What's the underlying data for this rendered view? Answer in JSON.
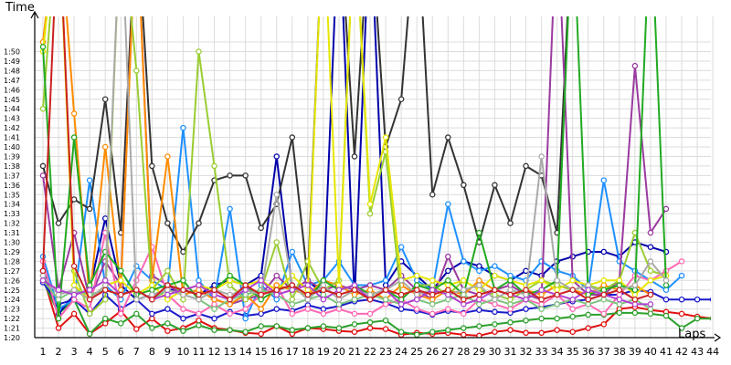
{
  "chart_data": {
    "type": "line",
    "title": "",
    "xlabel": "Laps",
    "ylabel": "Time",
    "xlim": [
      1,
      44
    ],
    "ylim_seconds": [
      80,
      111
    ],
    "y_ticks": [
      "1:20",
      "1:21",
      "1:22",
      "1:23",
      "1:24",
      "1:25",
      "1:26",
      "1:27",
      "1:28",
      "1:29",
      "1:30",
      "1:31",
      "1:32",
      "1:33",
      "1:34",
      "1:35",
      "1:36",
      "1:37",
      "1:38",
      "1:39",
      "1:40",
      "1:41",
      "1:42",
      "1:43",
      "1:44",
      "1:45",
      "1:46",
      "1:47",
      "1:48",
      "1:49",
      "1:50"
    ],
    "x_ticks": [
      "1",
      "2",
      "3",
      "4",
      "5",
      "6",
      "7",
      "8",
      "9",
      "10",
      "11",
      "12",
      "13",
      "14",
      "15",
      "16",
      "17",
      "18",
      "19",
      "20",
      "21",
      "22",
      "23",
      "24",
      "25",
      "26",
      "27",
      "28",
      "29",
      "30",
      "31",
      "32",
      "33",
      "34",
      "35",
      "36",
      "37",
      "38",
      "39",
      "40",
      "41",
      "42",
      "43",
      "44"
    ],
    "grid": true,
    "legend": "none",
    "series": [
      {
        "color": "#e01010",
        "values": [
          86.5,
          81.0,
          82.5,
          80.4,
          81.5,
          82.8,
          80.9,
          82.0,
          80.7,
          81.0,
          81.8,
          81.0,
          80.8,
          80.5,
          80.4,
          81.2,
          80.4,
          81.0,
          80.9,
          80.7,
          80.6,
          81.0,
          80.9,
          80.3,
          80.5,
          80.4,
          80.5,
          80.3,
          80.2,
          80.6,
          80.8,
          80.5,
          80.5,
          80.8,
          80.6,
          81.0,
          81.4,
          83.0,
          83.2,
          82.9,
          82.7,
          82.5,
          82.2,
          82.0
        ]
      },
      {
        "color": "#2ca02c",
        "values": [
          86.0,
          82.5,
          84.0,
          80.4,
          82.0,
          81.5,
          82.5,
          81.0,
          81.5,
          80.7,
          81.3,
          80.8,
          80.8,
          80.6,
          81.2,
          81.2,
          80.8,
          81.0,
          81.2,
          81.0,
          81.4,
          81.6,
          81.8,
          80.6,
          80.3,
          80.6,
          80.8,
          81.0,
          81.2,
          81.4,
          81.6,
          81.8,
          82.0,
          82.0,
          82.2,
          82.4,
          82.4,
          82.6,
          82.6,
          82.5,
          82.3,
          81.0,
          82.0,
          82.0
        ]
      },
      {
        "color": "#1b1bcc",
        "values": [
          85.8,
          83.5,
          84.0,
          82.5,
          84.5,
          83.0,
          84.0,
          82.5,
          83.0,
          82.0,
          82.5,
          82.0,
          82.7,
          82.3,
          82.5,
          83.0,
          82.8,
          83.4,
          83.0,
          83.3,
          83.8,
          84.0,
          83.6,
          83.0,
          82.8,
          82.4,
          82.8,
          82.6,
          82.9,
          82.7,
          82.6,
          83.0,
          83.2,
          83.5,
          83.8,
          84.0,
          84.5,
          84.5,
          85.0,
          84.8,
          84.0,
          84.0,
          84.0,
          84.0
        ]
      },
      {
        "color": "#0000aa",
        "values": [
          87.0,
          82.5,
          84.5,
          85.0,
          92.5,
          85.5,
          84.0,
          84.5,
          85.0,
          85.0,
          84.5,
          85.5,
          86.0,
          85.5,
          86.5,
          99.0,
          85.0,
          86.0,
          84.5,
          125,
          84.0,
          125,
          85.5,
          88.0,
          86.5,
          85.0,
          87.0,
          88.0,
          87.5,
          86.5,
          86.0,
          87.0,
          86.5,
          88.0,
          88.5,
          89.0,
          89.0,
          88.5,
          90.0,
          89.5,
          89.0,
          null,
          null,
          null
        ]
      },
      {
        "color": "#1e90ff",
        "values": [
          88.5,
          83.0,
          84.0,
          96.5,
          85.5,
          84.0,
          87.5,
          86.0,
          85.0,
          102.0,
          86.0,
          84.0,
          93.5,
          82.0,
          85.5,
          84.0,
          89.0,
          85.5,
          86.0,
          88.0,
          85.5,
          85.5,
          86.0,
          89.5,
          86.0,
          85.0,
          94.0,
          88.0,
          87.0,
          87.5,
          86.5,
          86.0,
          88.0,
          87.0,
          86.5,
          85.0,
          96.5,
          88.0,
          87.0,
          86.0,
          85.0,
          86.5,
          null,
          null
        ]
      },
      {
        "color": "#333333",
        "values": [
          98.0,
          92.0,
          94.5,
          93.5,
          105.0,
          91.0,
          125,
          98.0,
          92.0,
          89.0,
          92.0,
          96.5,
          97.0,
          97.0,
          91.5,
          94.0,
          101.0,
          86.0,
          125,
          125,
          99.0,
          125,
          100.0,
          105.0,
          125,
          95.0,
          101.0,
          96.0,
          90.0,
          96.0,
          92.0,
          98.0,
          97.0,
          91.0,
          125,
          125,
          125,
          125,
          125,
          125,
          125,
          null,
          null,
          null
        ]
      },
      {
        "color": "#9a3aa0",
        "values": [
          97.0,
          85.0,
          91.0,
          84.0,
          88.0,
          85.5,
          125,
          86.5,
          85.5,
          84.5,
          85.0,
          84.0,
          83.5,
          84.0,
          84.5,
          86.5,
          85.0,
          86.0,
          85.0,
          85.5,
          85.0,
          85.5,
          85.0,
          86.5,
          85.0,
          84.0,
          88.5,
          85.0,
          84.5,
          85.0,
          85.5,
          84.5,
          84.0,
          125,
          86.0,
          84.5,
          84.5,
          86.0,
          108.5,
          91.0,
          93.5,
          null,
          null,
          null
        ]
      },
      {
        "color": "#ff69b4",
        "values": [
          88.0,
          82.0,
          84.0,
          83.0,
          91.0,
          82.5,
          86.0,
          89.5,
          84.5,
          83.0,
          82.5,
          83.5,
          82.5,
          83.0,
          84.5,
          85.5,
          82.5,
          83.0,
          82.5,
          83.0,
          82.5,
          82.5,
          83.5,
          84.0,
          83.0,
          82.5,
          83.0,
          82.5,
          84.0,
          83.5,
          83.0,
          84.0,
          83.5,
          84.5,
          83.0,
          83.5,
          82.5,
          84.5,
          86.5,
          86.0,
          87.0,
          88.0,
          null,
          null
        ]
      },
      {
        "color": "#ff8c00",
        "values": [
          111.0,
          125,
          103.5,
          84.0,
          100.0,
          85.0,
          125,
          86.0,
          99.0,
          84.5,
          85.0,
          84.0,
          83.5,
          84.5,
          83.0,
          85.5,
          85.0,
          84.5,
          86.0,
          85.5,
          84.5,
          85.0,
          84.0,
          85.5,
          84.5,
          84.0,
          85.0,
          84.5,
          86.0,
          85.0,
          84.5,
          85.0,
          84.5,
          85.5,
          85.0,
          84.5,
          85.5,
          85.0,
          85.5,
          84.5,
          null,
          null,
          null,
          null
        ]
      },
      {
        "color": "#9acd32",
        "values": [
          104.0,
          125,
          87.0,
          82.5,
          84.0,
          125,
          108.0,
          85.0,
          87.0,
          84.0,
          110.0,
          98.0,
          85.5,
          84.0,
          85.0,
          90.0,
          84.0,
          88.0,
          85.0,
          86.0,
          125,
          93.0,
          99.5,
          84.0,
          85.5,
          85.5,
          84.5,
          86.0,
          85.0,
          84.5,
          84.0,
          85.0,
          86.0,
          85.5,
          85.0,
          85.5,
          85.0,
          86.0,
          91.0,
          87.0,
          86.5,
          null,
          null,
          null
        ]
      },
      {
        "color": "#e6e600",
        "values": [
          110.0,
          125,
          85.5,
          84.0,
          85.5,
          86.0,
          84.5,
          85.5,
          84.0,
          85.0,
          85.5,
          85.0,
          86.0,
          85.5,
          86.0,
          85.0,
          86.5,
          85.0,
          125,
          85.5,
          125,
          94.0,
          101.0,
          86.0,
          86.5,
          86.0,
          85.5,
          86.0,
          85.0,
          86.5,
          86.0,
          85.5,
          86.0,
          85.0,
          86.0,
          85.5,
          86.0,
          86.0,
          84.5,
          86.0,
          86.5,
          null,
          null,
          null
        ]
      },
      {
        "color": "#22aa22",
        "values": [
          110.5,
          82.0,
          101.0,
          85.5,
          89.0,
          87.0,
          84.5,
          85.0,
          85.5,
          86.0,
          84.0,
          85.0,
          86.5,
          85.5,
          84.0,
          85.0,
          85.5,
          84.0,
          86.0,
          85.0,
          85.5,
          84.5,
          85.0,
          84.0,
          85.5,
          85.0,
          86.0,
          84.5,
          91.0,
          85.0,
          86.0,
          84.5,
          85.0,
          86.0,
          125,
          84.5,
          85.0,
          85.5,
          85.0,
          125,
          85.5,
          null,
          null,
          null
        ]
      },
      {
        "color": "#7cc47c",
        "values": [
          86.0,
          84.0,
          85.0,
          84.5,
          85.0,
          84.5,
          85.0,
          84.0,
          85.0,
          84.5,
          84.0,
          83.0,
          84.0,
          84.5,
          85.0,
          84.5,
          83.5,
          84.0,
          84.5,
          83.5,
          84.0,
          84.5,
          84.0,
          83.5,
          84.0,
          83.5,
          84.0,
          84.5,
          83.5,
          84.0,
          83.5,
          84.0,
          83.0,
          83.5,
          84.0,
          83.5,
          84.0,
          83.5,
          84.0,
          83.0,
          null,
          null,
          null,
          null
        ]
      },
      {
        "color": "#aaaaaa",
        "values": [
          86.5,
          84.5,
          85.0,
          84.0,
          85.5,
          125,
          84.0,
          84.5,
          85.0,
          84.5,
          84.0,
          85.0,
          84.5,
          85.0,
          84.5,
          95.0,
          85.5,
          84.0,
          85.5,
          84.0,
          85.0,
          84.5,
          85.0,
          86.0,
          84.5,
          85.0,
          84.5,
          85.0,
          85.5,
          84.0,
          85.0,
          84.5,
          99.0,
          86.0,
          85.0,
          85.5,
          84.5,
          85.0,
          85.5,
          88.0,
          86.0,
          null,
          null,
          null
        ]
      },
      {
        "color": "#b040d0",
        "values": [
          86.0,
          85.0,
          84.5,
          85.0,
          86.0,
          84.5,
          85.0,
          84.0,
          84.5,
          85.0,
          85.5,
          84.5,
          84.0,
          85.0,
          86.0,
          84.5,
          85.0,
          85.5,
          84.0,
          85.0,
          85.5,
          84.0,
          85.0,
          83.5,
          84.0,
          85.0,
          84.5,
          83.5,
          84.0,
          85.0,
          84.5,
          84.0,
          85.0,
          84.5,
          84.0,
          85.0,
          84.5,
          84.0,
          83.5,
          83.5,
          null,
          null,
          null,
          null
        ]
      },
      {
        "color": "#cc2020",
        "values": [
          87.0,
          125,
          87.5,
          84.0,
          85.0,
          84.5,
          85.0,
          84.0,
          85.5,
          85.0,
          84.5,
          85.0,
          84.0,
          85.5,
          84.5,
          85.0,
          85.5,
          84.5,
          85.0,
          84.5,
          85.0,
          84.0,
          85.0,
          84.5,
          85.0,
          84.5,
          85.0,
          84.0,
          84.5,
          85.0,
          84.5,
          85.0,
          84.0,
          84.5,
          85.0,
          84.0,
          84.5,
          85.0,
          84.0,
          84.5,
          null,
          null,
          null,
          null
        ]
      }
    ]
  }
}
